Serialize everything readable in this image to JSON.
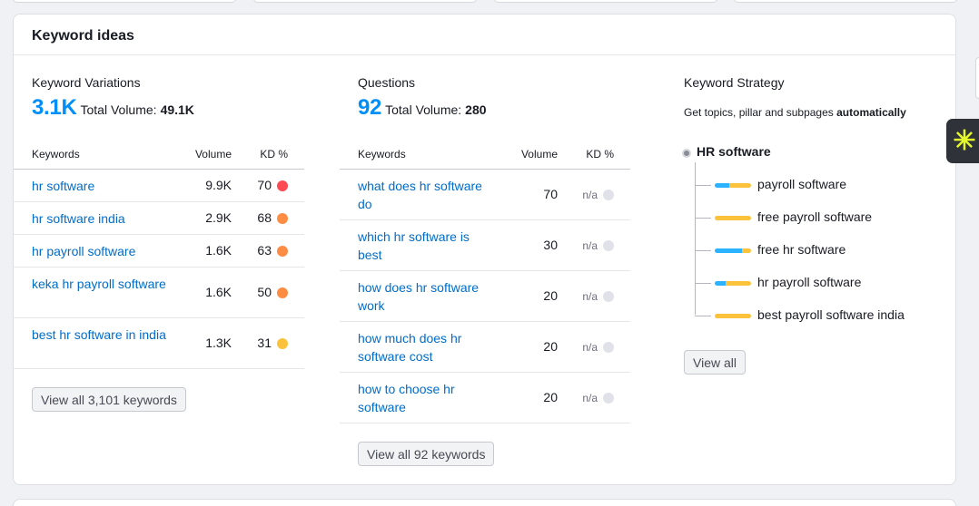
{
  "card": {
    "title": "Keyword ideas"
  },
  "variations": {
    "title": "Keyword Variations",
    "count": "3.1K",
    "total_volume_label": "Total Volume:",
    "total_volume": "49.1K",
    "headers": {
      "keyword": "Keywords",
      "volume": "Volume",
      "kd": "KD %"
    },
    "rows": [
      {
        "keyword": "hr software",
        "volume": "9.9K",
        "kd": "70",
        "kd_color": "#ff4953"
      },
      {
        "keyword": "hr software india",
        "volume": "2.9K",
        "kd": "68",
        "kd_color": "#ff8c43"
      },
      {
        "keyword": "hr payroll software",
        "volume": "1.6K",
        "kd": "63",
        "kd_color": "#ff8c43"
      },
      {
        "keyword": "keka hr payroll software",
        "volume": "1.6K",
        "kd": "50",
        "kd_color": "#ff8c43"
      },
      {
        "keyword": "best hr software in india",
        "volume": "1.3K",
        "kd": "31",
        "kd_color": "#fdc23c"
      }
    ],
    "view_all_label": "View all 3,101 keywords"
  },
  "questions": {
    "title": "Questions",
    "count": "92",
    "total_volume_label": "Total Volume:",
    "total_volume": "280",
    "headers": {
      "keyword": "Keywords",
      "volume": "Volume",
      "kd": "KD %"
    },
    "rows": [
      {
        "keyword": "what does hr software do",
        "volume": "70",
        "kd": "n/a",
        "kd_color": "#e0e1e9"
      },
      {
        "keyword": "which hr software is best",
        "volume": "30",
        "kd": "n/a",
        "kd_color": "#e0e1e9"
      },
      {
        "keyword": "how does hr software work",
        "volume": "20",
        "kd": "n/a",
        "kd_color": "#e0e1e9"
      },
      {
        "keyword": "how much does hr software cost",
        "volume": "20",
        "kd": "n/a",
        "kd_color": "#e0e1e9"
      },
      {
        "keyword": "how to choose hr software",
        "volume": "20",
        "kd": "n/a",
        "kd_color": "#e0e1e9"
      }
    ],
    "view_all_label": "View all 92 keywords"
  },
  "strategy": {
    "title": "Keyword Strategy",
    "subtitle_prefix": "Get topics, pillar and subpages",
    "subtitle_bold": "automatically",
    "root": "HR software",
    "items": [
      {
        "label": "payroll software",
        "bar": [
          0.4,
          0.6
        ]
      },
      {
        "label": "free payroll software",
        "bar": [
          0,
          1
        ]
      },
      {
        "label": "free hr software",
        "bar": [
          0.75,
          0.25
        ]
      },
      {
        "label": "hr payroll software",
        "bar": [
          0.3,
          0.7
        ]
      },
      {
        "label": "best payroll software india",
        "bar": [
          0,
          1
        ]
      }
    ],
    "bar_colors": [
      "#2bb3ff",
      "#fdc23c"
    ],
    "view_all_label": "View all"
  },
  "side_widget": {
    "icon": "sparkle-icon"
  }
}
